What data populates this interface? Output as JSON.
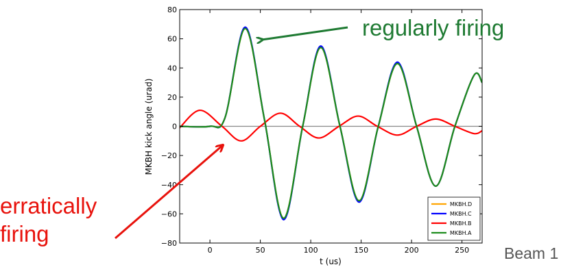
{
  "annotations": {
    "regular": "regularly firing",
    "erratic_line1": "erratically",
    "erratic_line2": "firing",
    "beam": "Beam 1"
  },
  "colors": {
    "annotation_green": "#1e7a32",
    "annotation_red": "#e8120c"
  },
  "chart_data": {
    "type": "line",
    "title": "",
    "xlabel": "t (us)",
    "ylabel": "MKBH kick angle (urad)",
    "xlim": [
      -30,
      270
    ],
    "ylim": [
      -80,
      80
    ],
    "xticks": [
      0,
      50,
      100,
      150,
      200,
      250
    ],
    "xtick_labels": [
      "0",
      "50",
      "100",
      "150",
      "200",
      "250"
    ],
    "yticks": [
      -80,
      -60,
      -40,
      -20,
      0,
      20,
      40,
      60,
      80
    ],
    "ytick_labels": [
      "−80",
      "−60",
      "−40",
      "−20",
      "0",
      "20",
      "40",
      "60",
      "80"
    ],
    "grid": false,
    "legend_position": "bottom-right",
    "zero_line": true,
    "series": [
      {
        "name": "MKBH.D",
        "color": "#ffa500",
        "x": [
          -30,
          0,
          15,
          35,
          54,
          73,
          92,
          110,
          129,
          148,
          167,
          186,
          205,
          224,
          243,
          262,
          270
        ],
        "y": [
          0,
          0,
          6,
          67,
          5,
          -63,
          0,
          54,
          0,
          -51,
          0,
          43,
          0,
          -41,
          0,
          35,
          30
        ]
      },
      {
        "name": "MKBH.C",
        "color": "#0000ff",
        "x": [
          -30,
          0,
          15,
          35,
          54,
          73,
          92,
          110,
          129,
          148,
          167,
          186,
          205,
          224,
          243,
          262,
          270
        ],
        "y": [
          0,
          0,
          6,
          68,
          5,
          -64,
          0,
          55,
          0,
          -52,
          0,
          44,
          0,
          -41,
          0,
          35,
          30
        ]
      },
      {
        "name": "MKBH.B",
        "color": "#ff0000",
        "x": [
          -30,
          -10,
          12,
          31,
          50,
          70,
          89,
          108,
          128,
          147,
          166,
          186,
          205,
          224,
          243,
          262,
          270
        ],
        "y": [
          -1,
          11,
          0,
          -10,
          0,
          9,
          0,
          -8,
          0,
          7,
          0,
          -6,
          0,
          5,
          0,
          -5,
          -3
        ]
      },
      {
        "name": "MKBH.A",
        "color": "#1c8c1c",
        "x": [
          -30,
          0,
          15,
          35,
          54,
          73,
          92,
          110,
          129,
          148,
          167,
          186,
          205,
          224,
          243,
          262,
          270
        ],
        "y": [
          0,
          0,
          6,
          67,
          5,
          -63,
          0,
          54,
          0,
          -51,
          0,
          43,
          0,
          -41,
          0,
          35,
          30
        ]
      }
    ]
  }
}
